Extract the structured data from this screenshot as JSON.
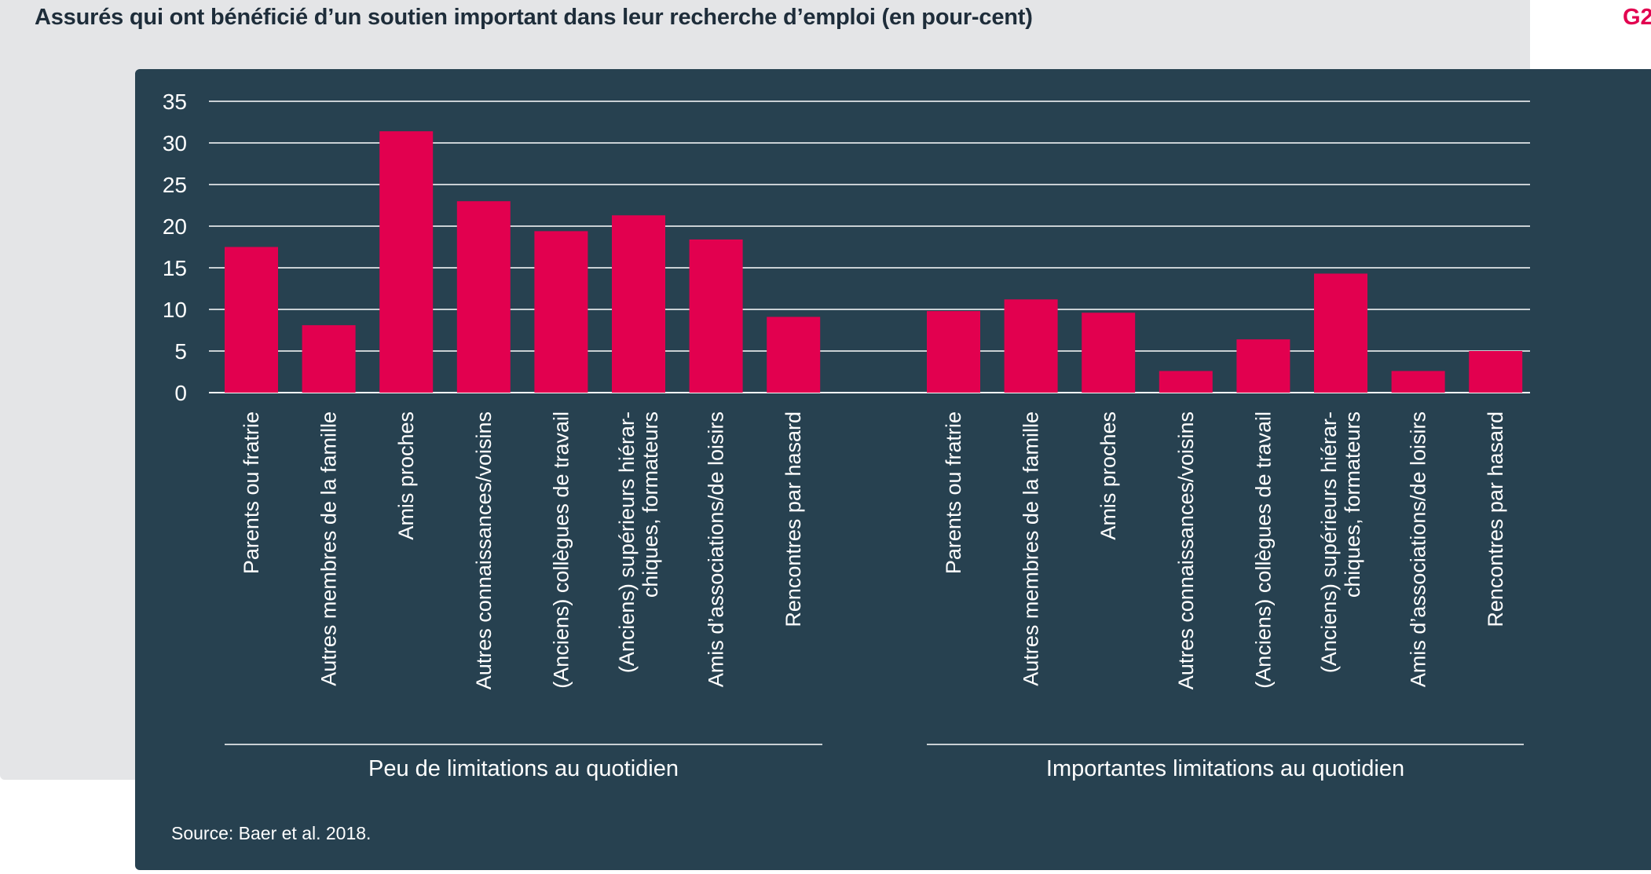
{
  "header": {
    "title": "Assurés qui ont bénéficié d’un soutien important dans leur recherche d’emploi (en pour-cent)",
    "tag": "G2"
  },
  "footer": {
    "source": "Source: Baer et al. 2018."
  },
  "colors": {
    "bar": "#e2004f",
    "panel": "#274150",
    "background": "#e4e5e7",
    "title": "#1e2d3a"
  },
  "chart_data": {
    "type": "bar",
    "title": "Assurés qui ont bénéficié d’un soutien important dans leur recherche d’emploi (en pour-cent)",
    "ylim": [
      0,
      35
    ],
    "yticks": [
      0,
      5,
      10,
      15,
      20,
      25,
      30,
      35
    ],
    "grid": true,
    "groups": [
      {
        "label": "Peu de limitations au quotidien",
        "categories": [
          [
            "Parents ou fratrie"
          ],
          [
            "Autres membres de la famille"
          ],
          [
            "Amis proches"
          ],
          [
            "Autres connaissances/voisins"
          ],
          [
            "(Anciens) collègues de travail"
          ],
          [
            "(Anciens) supérieurs hiérar-",
            "chiques, formateurs"
          ],
          [
            "Amis d’associations/de loisirs"
          ],
          [
            "Rencontres par hasard"
          ]
        ],
        "values": [
          17.5,
          8.1,
          31.4,
          23.0,
          19.4,
          21.3,
          18.4,
          9.1
        ]
      },
      {
        "label": "Importantes limitations au quotidien",
        "categories": [
          [
            "Parents ou fratrie"
          ],
          [
            "Autres membres de la famille"
          ],
          [
            "Amis proches"
          ],
          [
            "Autres connaissances/voisins"
          ],
          [
            "(Anciens) collègues de travail"
          ],
          [
            "(Anciens) supérieurs hiérar-",
            "chiques, formateurs"
          ],
          [
            "Amis d’associations/de loisirs"
          ],
          [
            "Rencontres par hasard"
          ]
        ],
        "values": [
          9.8,
          11.2,
          9.6,
          2.6,
          6.4,
          14.3,
          2.6,
          5.0
        ]
      }
    ]
  }
}
